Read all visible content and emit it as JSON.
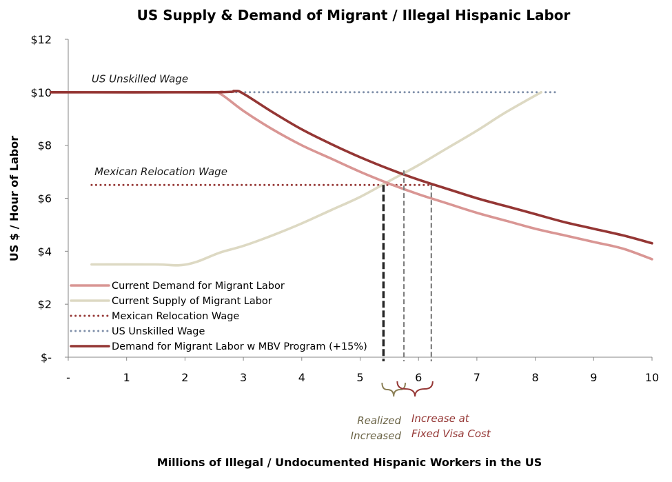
{
  "chart_data": {
    "type": "line",
    "title": "US Supply & Demand of Migrant / Illegal Hispanic Labor",
    "xlabel": "Millions of Illegal / Undocumented Hispanic Workers in the US",
    "ylabel": "US $ / Hour of Labor",
    "xlim": [
      0,
      10
    ],
    "ylim": [
      0,
      12
    ],
    "x_ticks": [
      {
        "value": 0,
        "label": "-"
      },
      {
        "value": 1,
        "label": "1"
      },
      {
        "value": 2,
        "label": "2"
      },
      {
        "value": 3,
        "label": "3"
      },
      {
        "value": 4,
        "label": "4"
      },
      {
        "value": 5,
        "label": "5"
      },
      {
        "value": 6,
        "label": "6"
      },
      {
        "value": 7,
        "label": "7"
      },
      {
        "value": 8,
        "label": "8"
      },
      {
        "value": 9,
        "label": "9"
      },
      {
        "value": 10,
        "label": "10"
      }
    ],
    "y_ticks": [
      {
        "value": 0,
        "label": "$-"
      },
      {
        "value": 2,
        "label": "$2"
      },
      {
        "value": 4,
        "label": "$4"
      },
      {
        "value": 6,
        "label": "$6"
      },
      {
        "value": 8,
        "label": "$8"
      },
      {
        "value": 10,
        "label": "$10"
      },
      {
        "value": 12,
        "label": "$12"
      }
    ],
    "grid": false,
    "legend_position": "bottom-left",
    "series": [
      {
        "name": "Current Demand for Migrant Labor",
        "color": "#d99694",
        "style": "solid",
        "points": [
          [
            -0.3,
            10
          ],
          [
            2.4,
            10
          ],
          [
            2.6,
            9.95
          ],
          [
            3,
            9.3
          ],
          [
            3.5,
            8.6
          ],
          [
            4,
            8.0
          ],
          [
            4.5,
            7.5
          ],
          [
            5,
            7.0
          ],
          [
            5.5,
            6.55
          ],
          [
            6,
            6.15
          ],
          [
            6.5,
            5.8
          ],
          [
            7,
            5.45
          ],
          [
            7.5,
            5.15
          ],
          [
            8,
            4.85
          ],
          [
            8.5,
            4.6
          ],
          [
            9,
            4.35
          ],
          [
            9.5,
            4.1
          ],
          [
            10,
            3.7
          ]
        ]
      },
      {
        "name": "Current Supply of Migrant Labor",
        "color": "#ddd9c3",
        "style": "solid",
        "points": [
          [
            0.4,
            3.5
          ],
          [
            1.5,
            3.5
          ],
          [
            1.9,
            3.47
          ],
          [
            2.2,
            3.6
          ],
          [
            2.6,
            3.95
          ],
          [
            3,
            4.2
          ],
          [
            3.5,
            4.6
          ],
          [
            4,
            5.05
          ],
          [
            4.5,
            5.55
          ],
          [
            5,
            6.05
          ],
          [
            5.5,
            6.65
          ],
          [
            6,
            7.25
          ],
          [
            6.5,
            7.9
          ],
          [
            7,
            8.55
          ],
          [
            7.5,
            9.25
          ],
          [
            8.1,
            10.0
          ]
        ]
      },
      {
        "name": "Mexican Relocation Wage",
        "color": "#953735",
        "style": "dotted",
        "points": [
          [
            0.4,
            6.5
          ],
          [
            6.3,
            6.5
          ]
        ]
      },
      {
        "name": "US Unskilled Wage",
        "color": "#7f8fa9",
        "style": "dotted",
        "points": [
          [
            2.8,
            10
          ],
          [
            8.4,
            10
          ]
        ]
      },
      {
        "name": "Demand for Migrant Labor w MBV Program (+15%)",
        "color": "#943634",
        "style": "solid",
        "points": [
          [
            -0.3,
            10
          ],
          [
            2.5,
            10
          ],
          [
            2.85,
            10.05
          ],
          [
            3,
            9.95
          ],
          [
            3.5,
            9.25
          ],
          [
            4,
            8.6
          ],
          [
            4.5,
            8.05
          ],
          [
            5,
            7.55
          ],
          [
            5.5,
            7.1
          ],
          [
            6,
            6.7
          ],
          [
            6.5,
            6.35
          ],
          [
            7,
            6.0
          ],
          [
            7.5,
            5.7
          ],
          [
            8,
            5.4
          ],
          [
            8.5,
            5.1
          ],
          [
            9,
            4.85
          ],
          [
            9.5,
            4.6
          ],
          [
            10,
            4.3
          ]
        ]
      }
    ],
    "reference_lines": [
      {
        "x": 5.4,
        "y_top": 6.5,
        "color": "#262626",
        "style": "dashed-bold"
      },
      {
        "x": 5.75,
        "y_top": 7.05,
        "color": "#7f7f7f",
        "style": "dashed"
      },
      {
        "x": 6.22,
        "y_top": 6.5,
        "color": "#7f7f7f",
        "style": "dashed"
      }
    ],
    "annotations": [
      {
        "text": "US Unskilled Wage",
        "x": 0.4,
        "y": 10.5
      },
      {
        "text": "Mexican Relocation Wage",
        "x": 0.45,
        "y": 7.0
      }
    ],
    "braces": [
      {
        "x_from": 5.4,
        "x_to": 5.75,
        "color": "#8c8057",
        "label": [
          "Realized",
          "Increased"
        ]
      },
      {
        "x_from": 5.4,
        "x_to": 6.22,
        "color": "#953735",
        "label": [
          "Increase at",
          "Fixed Visa Cost"
        ]
      }
    ]
  }
}
